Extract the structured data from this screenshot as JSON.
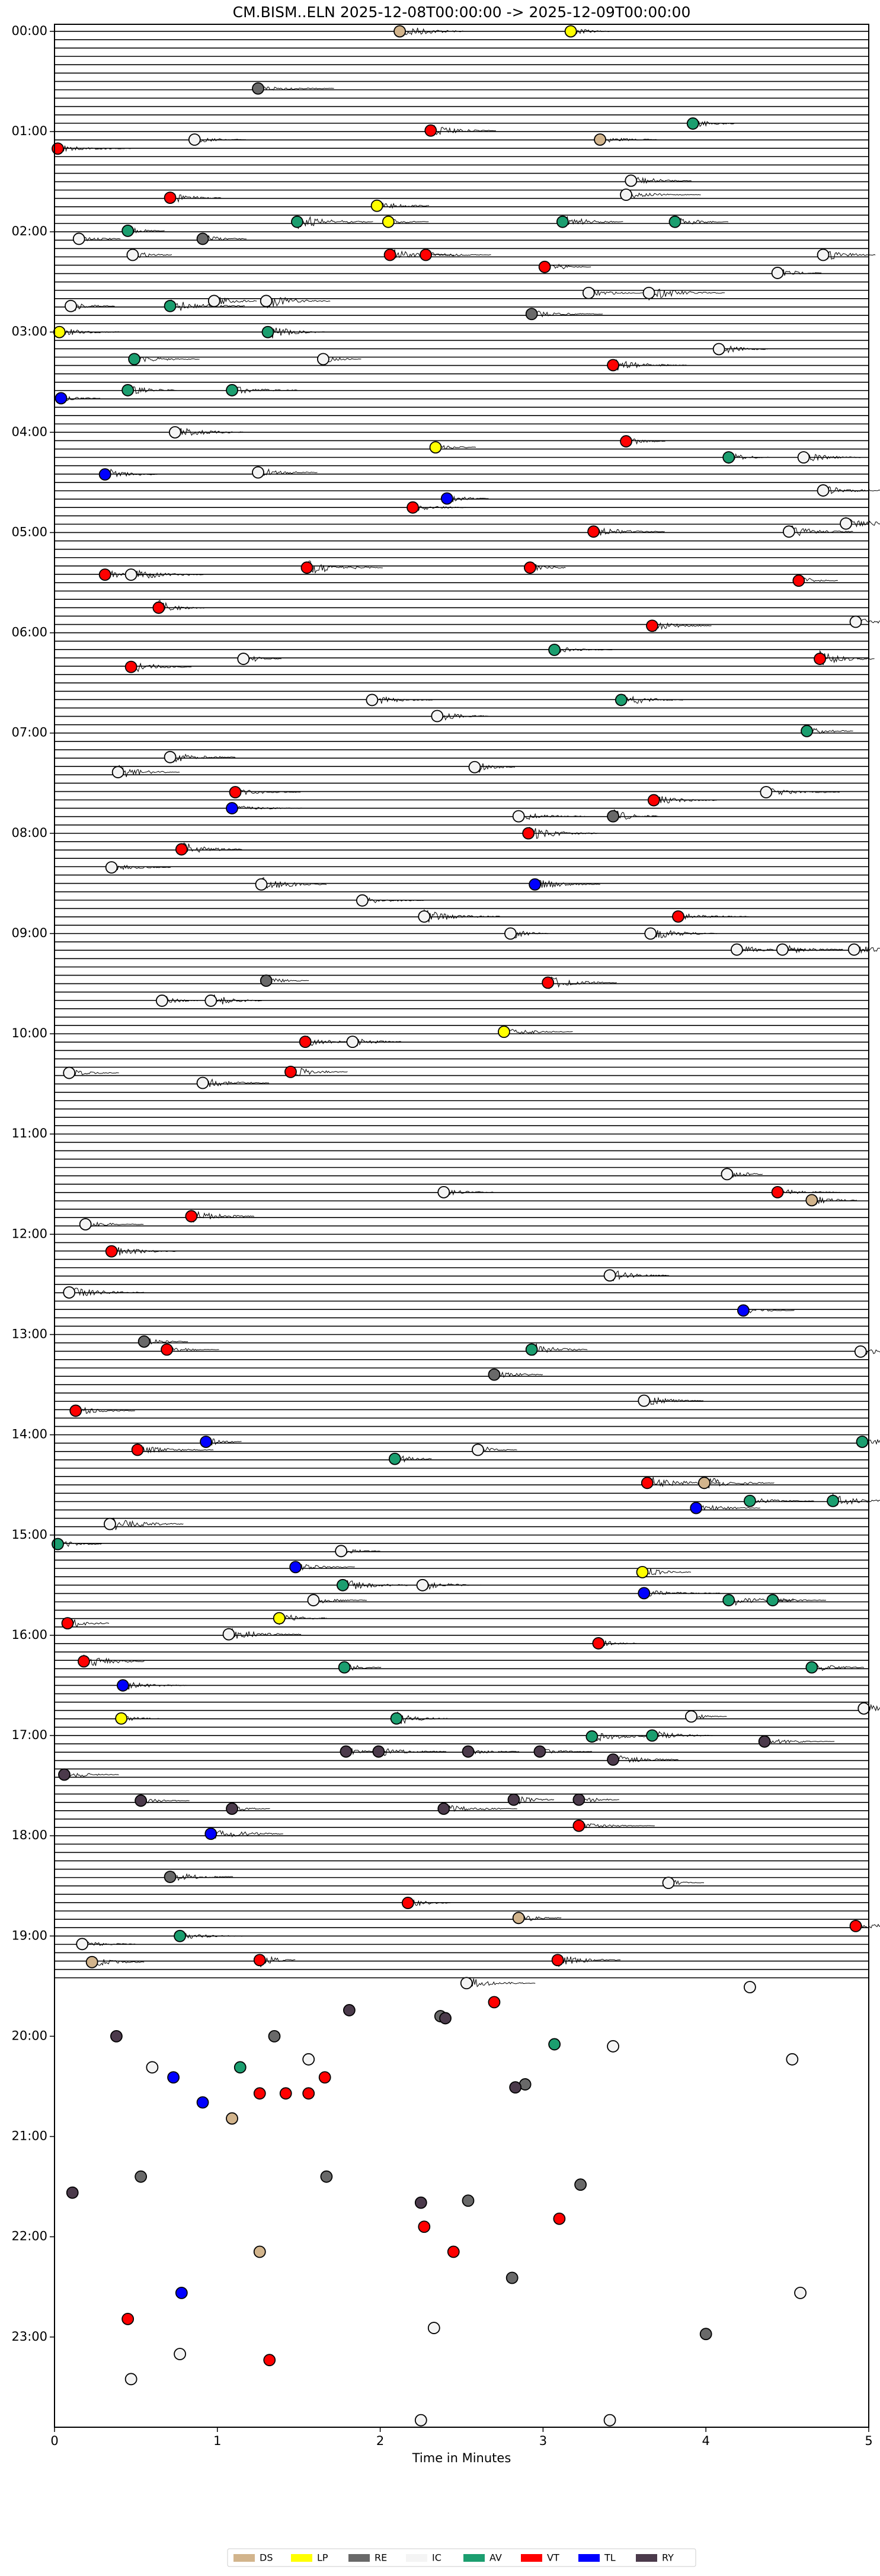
{
  "chart_data": {
    "type": "scatter",
    "title": "CM.BISM..ELN  2025-12-08T00:00:00 -> 2025-12-09T00:00:00",
    "x_label": "Time in Minutes",
    "xlim": [
      0,
      5
    ],
    "xticks": [
      0,
      1,
      2,
      3,
      4,
      5
    ],
    "ylim": [
      -0.07,
      23.9
    ],
    "y_inverted": true,
    "yticks": [
      {
        "value": 0,
        "label": "00:00"
      },
      {
        "value": 1,
        "label": "01:00"
      },
      {
        "value": 2,
        "label": "02:00"
      },
      {
        "value": 3,
        "label": "03:00"
      },
      {
        "value": 4,
        "label": "04:00"
      },
      {
        "value": 5,
        "label": "05:00"
      },
      {
        "value": 6,
        "label": "06:00"
      },
      {
        "value": 7,
        "label": "07:00"
      },
      {
        "value": 8,
        "label": "08:00"
      },
      {
        "value": 9,
        "label": "09:00"
      },
      {
        "value": 10,
        "label": "10:00"
      },
      {
        "value": 11,
        "label": "11:00"
      },
      {
        "value": 12,
        "label": "12:00"
      },
      {
        "value": 13,
        "label": "13:00"
      },
      {
        "value": 14,
        "label": "14:00"
      },
      {
        "value": 15,
        "label": "15:00"
      },
      {
        "value": 16,
        "label": "16:00"
      },
      {
        "value": 17,
        "label": "17:00"
      },
      {
        "value": 18,
        "label": "18:00"
      },
      {
        "value": 19,
        "label": "19:00"
      },
      {
        "value": 20,
        "label": "20:00"
      },
      {
        "value": 21,
        "label": "21:00"
      },
      {
        "value": 22,
        "label": "22:00"
      },
      {
        "value": 23,
        "label": "23:00"
      }
    ],
    "legend": "lower center",
    "series": [
      {
        "name": "DS",
        "color": "#d2b48c",
        "x": [
          2.12,
          3.35,
          4.65,
          2.85,
          0.23,
          1.26,
          3.99,
          1.09
        ],
        "y": [
          0.0,
          1.08,
          11.66,
          18.82,
          19.26,
          22.15,
          14.48,
          20.82
        ]
      },
      {
        "name": "LP",
        "color": "#ffff00",
        "x": [
          3.17,
          1.98,
          2.05,
          0.03,
          2.34,
          2.76,
          1.38,
          3.61,
          0.41
        ],
        "y": [
          0.0,
          1.74,
          1.9,
          3.0,
          4.15,
          9.98,
          15.83,
          15.37,
          16.83
        ]
      },
      {
        "name": "RE",
        "color": "#696969",
        "x": [
          1.25,
          0.91,
          2.93,
          3.43,
          1.3,
          0.55,
          2.7,
          0.71,
          2.37,
          2.89,
          0.53,
          1.67,
          1.35,
          2.54,
          2.81,
          4.0,
          3.23
        ],
        "y": [
          0.57,
          2.07,
          2.82,
          7.83,
          9.47,
          13.07,
          13.4,
          18.41,
          19.8,
          20.48,
          21.4,
          21.4,
          20.0,
          21.64,
          22.41,
          22.97,
          21.48
        ]
      },
      {
        "name": "IC",
        "color": "#f4f4f4",
        "x": [
          0.86,
          3.54,
          3.51,
          0.15,
          0.48,
          3.28,
          3.65,
          4.44,
          4.72,
          1.3,
          0.1,
          0.98,
          4.08,
          1.65,
          0.74,
          1.25,
          4.6,
          4.72,
          4.51,
          4.86,
          0.47,
          4.92,
          1.16,
          1.95,
          2.35,
          0.71,
          2.58,
          0.39,
          4.37,
          2.85,
          0.35,
          1.27,
          1.89,
          2.27,
          2.8,
          3.66,
          4.19,
          4.47,
          4.91,
          0.66,
          0.96,
          1.83,
          0.09,
          0.91,
          4.13,
          2.39,
          0.19,
          3.41,
          0.09,
          4.95,
          3.62,
          2.6,
          0.34,
          1.76,
          2.26,
          1.07,
          1.59,
          4.97,
          3.91,
          3.77,
          0.17,
          2.53,
          4.27,
          0.6,
          1.56,
          3.43,
          4.53,
          2.33,
          4.58,
          0.77,
          0.47,
          2.25,
          3.41
        ],
        "y": [
          1.08,
          1.49,
          1.63,
          2.07,
          2.23,
          2.61,
          2.61,
          2.41,
          2.23,
          2.69,
          2.74,
          2.69,
          3.17,
          3.27,
          4.0,
          4.4,
          4.25,
          4.58,
          4.99,
          4.91,
          5.42,
          5.89,
          6.26,
          6.67,
          6.83,
          7.24,
          7.34,
          7.39,
          7.59,
          7.83,
          8.34,
          8.51,
          8.67,
          8.83,
          9.0,
          9.0,
          9.16,
          9.16,
          9.16,
          9.67,
          9.67,
          10.08,
          10.39,
          10.49,
          11.4,
          11.58,
          11.9,
          12.41,
          12.58,
          13.17,
          13.66,
          14.15,
          14.89,
          15.16,
          15.5,
          15.99,
          15.65,
          16.73,
          16.81,
          18.47,
          19.08,
          19.47,
          19.51,
          20.31,
          20.23,
          20.1,
          20.23,
          22.91,
          22.56,
          23.17,
          23.42,
          23.83,
          23.83
        ]
      },
      {
        "name": "AV",
        "color": "#1b9e6f",
        "x": [
          3.92,
          0.45,
          1.49,
          3.12,
          3.81,
          0.71,
          1.31,
          0.49,
          0.45,
          1.09,
          4.14,
          3.07,
          3.48,
          4.62,
          3.3,
          3.67,
          4.14,
          4.41,
          2.09,
          1.77,
          1.78,
          2.1,
          0.77,
          1.14,
          3.07,
          4.96,
          0.02,
          4.65,
          2.93,
          4.27,
          4.78
        ],
        "y": [
          0.92,
          1.99,
          1.9,
          1.9,
          1.9,
          2.74,
          3.0,
          3.27,
          3.58,
          3.58,
          4.25,
          6.17,
          6.67,
          6.98,
          17.01,
          17.0,
          15.65,
          15.65,
          14.24,
          15.5,
          16.32,
          16.83,
          19.0,
          20.31,
          20.08,
          14.07,
          15.09,
          16.32,
          13.15,
          14.66,
          14.66
        ]
      },
      {
        "name": "VT",
        "color": "#ff0000",
        "x": [
          2.31,
          0.02,
          0.71,
          2.06,
          2.28,
          3.01,
          3.43,
          3.51,
          2.2,
          3.31,
          0.31,
          1.55,
          2.92,
          0.64,
          4.57,
          3.67,
          0.47,
          4.7,
          1.11,
          3.68,
          0.78,
          2.91,
          3.83,
          3.03,
          1.54,
          1.45,
          4.44,
          0.84,
          0.35,
          0.69,
          0.51,
          3.64,
          0.18,
          0.08,
          3.34,
          2.7,
          1.42,
          1.26,
          1.56,
          1.66,
          2.27,
          2.45,
          3.1,
          0.45,
          1.32,
          3.22,
          2.17,
          1.26,
          3.09,
          4.92,
          0.13
        ],
        "y": [
          0.99,
          1.17,
          1.66,
          2.23,
          2.23,
          2.35,
          3.33,
          4.09,
          4.75,
          4.99,
          5.42,
          5.35,
          5.35,
          5.75,
          5.48,
          5.93,
          6.34,
          6.26,
          7.59,
          7.67,
          8.16,
          8.0,
          8.83,
          9.49,
          10.08,
          10.38,
          11.58,
          11.82,
          12.17,
          13.15,
          14.15,
          14.48,
          16.26,
          15.88,
          16.08,
          19.66,
          20.57,
          20.57,
          20.57,
          20.41,
          21.9,
          22.15,
          21.82,
          22.82,
          23.23,
          17.9,
          18.67,
          19.24,
          19.24,
          18.9,
          13.76
        ]
      },
      {
        "name": "TL",
        "color": "#0000ff",
        "x": [
          0.04,
          0.31,
          2.41,
          2.95,
          1.09,
          4.23,
          0.93,
          3.94,
          1.48,
          3.62,
          0.42,
          0.96,
          0.73,
          0.91,
          0.78
        ],
        "y": [
          3.66,
          4.42,
          4.66,
          8.51,
          7.75,
          12.76,
          14.07,
          14.73,
          15.32,
          15.58,
          16.5,
          17.98,
          20.41,
          20.66,
          22.56
        ]
      },
      {
        "name": "RY",
        "color": "#4b3a4b",
        "x": [
          0.38,
          1.81,
          2.4,
          2.83,
          0.11,
          2.25,
          1.79,
          2.54,
          2.98,
          3.43,
          1.09,
          0.53,
          0.06,
          2.39,
          1.99,
          2.82,
          4.36,
          3.22
        ],
        "y": [
          20.0,
          19.74,
          19.82,
          20.51,
          21.56,
          21.66,
          17.16,
          17.16,
          17.16,
          17.24,
          17.73,
          17.65,
          17.39,
          17.73,
          17.16,
          17.64,
          17.06,
          17.64
        ]
      }
    ]
  }
}
